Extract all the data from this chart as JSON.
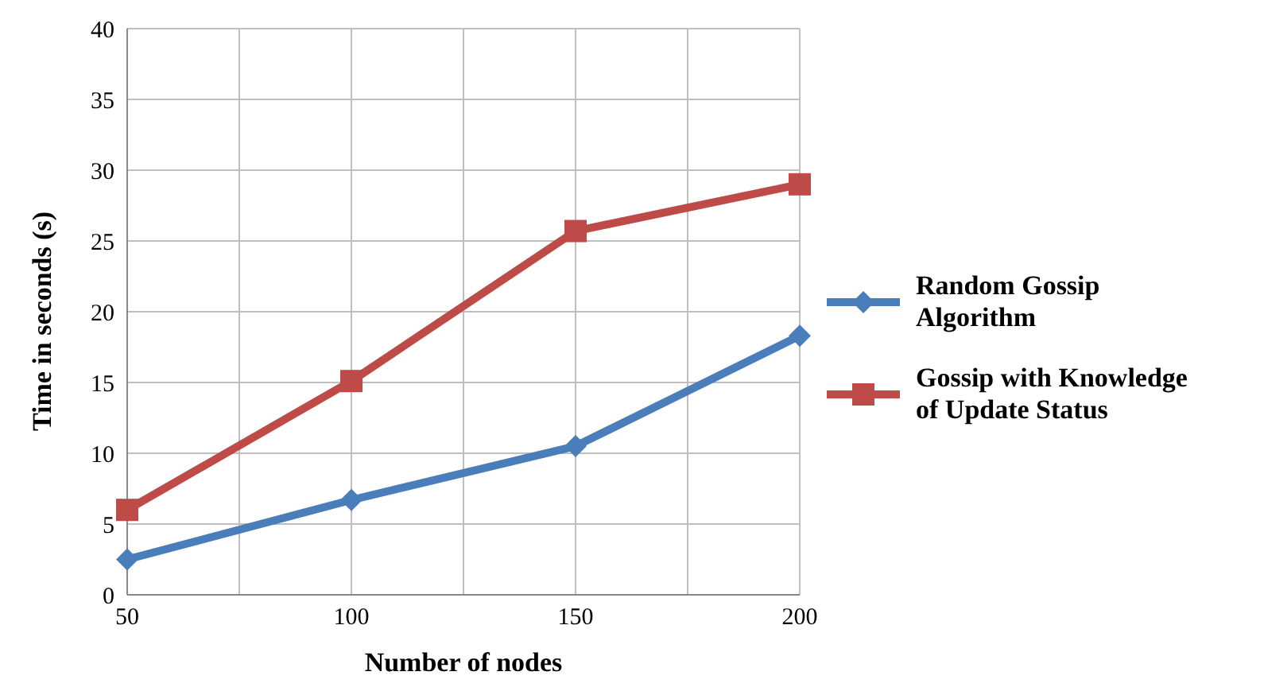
{
  "chart_data": {
    "type": "line",
    "xlabel": "Number of nodes",
    "ylabel": "Time in seconds (s)",
    "x": [
      50,
      100,
      150,
      200
    ],
    "series": [
      {
        "name": "Random Gossip Algorithm",
        "color": "#4a7ebb",
        "values": [
          2.5,
          6.7,
          10.5,
          18.3
        ],
        "marker": "diamond"
      },
      {
        "name": "Gossip with Knowledge of Update Status",
        "color": "#be4b48",
        "values": [
          6.0,
          15.1,
          25.7,
          29.0
        ],
        "marker": "square"
      }
    ],
    "xlim": [
      50,
      200
    ],
    "xticks": [
      50,
      {
        "value": 75,
        "label": null
      },
      100,
      {
        "value": 125,
        "label": null
      },
      150,
      {
        "value": 175,
        "label": null
      },
      200
    ],
    "ylim": [
      0,
      40
    ],
    "yticks": [
      0,
      5,
      10,
      15,
      20,
      25,
      30,
      35,
      40
    ],
    "grid": true,
    "legend": "right",
    "line_style": "solid"
  }
}
